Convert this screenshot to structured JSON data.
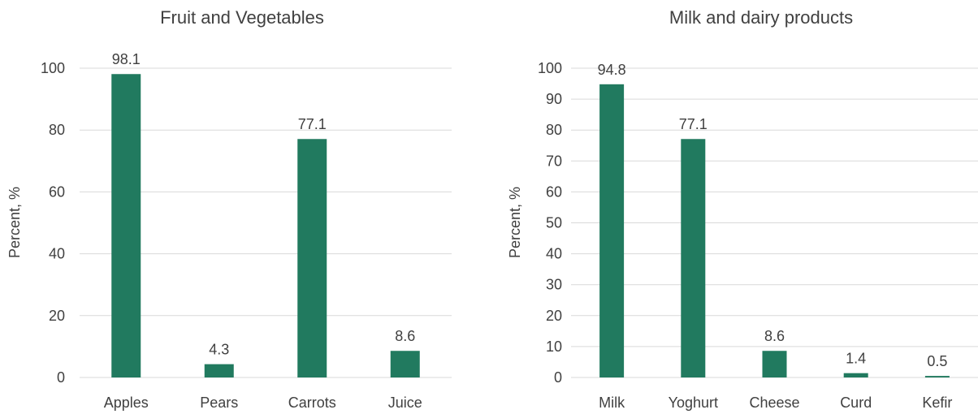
{
  "chart_data": [
    {
      "type": "bar",
      "title": "Fruit and Vegetables",
      "ylabel": "Percent, %",
      "xlabel": "",
      "categories": [
        "Apples",
        "Pears",
        "Carrots",
        "Juice"
      ],
      "values": [
        98.1,
        4.3,
        77.1,
        8.6
      ],
      "data_labels": [
        "98.1",
        "4.3",
        "77.1",
        "8.6"
      ],
      "ylim": [
        0,
        100
      ],
      "yticks": [
        0,
        20,
        40,
        60,
        80,
        100
      ],
      "grid": true,
      "bar_color": "#217a5f"
    },
    {
      "type": "bar",
      "title": "Milk and dairy products",
      "ylabel": "Percent, %",
      "xlabel": "",
      "categories": [
        "Milk",
        "Yoghurt",
        "Cheese",
        "Curd",
        "Kefir"
      ],
      "values": [
        94.8,
        77.1,
        8.6,
        1.4,
        0.5
      ],
      "data_labels": [
        "94.8",
        "77.1",
        "8.6",
        "1.4",
        "0.5"
      ],
      "ylim": [
        0,
        100
      ],
      "yticks": [
        0,
        10,
        20,
        30,
        40,
        50,
        60,
        70,
        80,
        90,
        100
      ],
      "grid": true,
      "bar_color": "#217a5f"
    }
  ]
}
